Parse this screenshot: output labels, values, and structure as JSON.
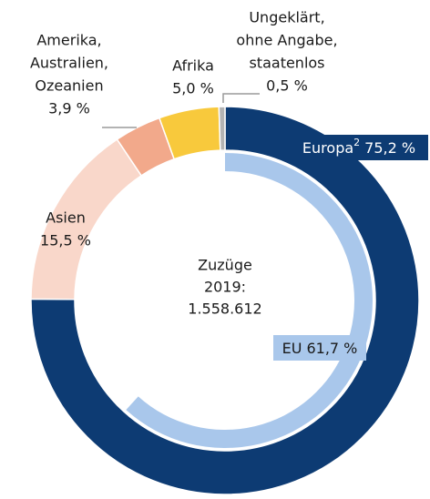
{
  "chart_data": {
    "type": "donut",
    "center_label": [
      "Zuzüge",
      "2019:",
      "1.558.612"
    ],
    "series": [
      {
        "name": [
          "Europa"
        ],
        "footnote": "2",
        "values": [
          75.2
        ],
        "value_labels": [
          "75,2 %"
        ],
        "color": "#0d3b73"
      },
      {
        "name": [
          "Asien"
        ],
        "values": [
          15.5
        ],
        "value_labels": [
          "15,5 %"
        ],
        "color": "#f9d7ca"
      },
      {
        "name": [
          "Amerika,",
          "Australien,",
          "Ozeanien"
        ],
        "values": [
          3.9
        ],
        "value_labels": [
          "3,9 %"
        ],
        "color": "#f2a98b"
      },
      {
        "name": [
          "Afrika"
        ],
        "values": [
          5.0
        ],
        "value_labels": [
          "5,0 %"
        ],
        "color": "#f8c93c"
      },
      {
        "name": [
          "Ungeklärt,",
          "ohne Angabe,",
          "staatenlos"
        ],
        "values": [
          0.5
        ],
        "value_labels": [
          "0,5 %"
        ],
        "color": "#b3b3b3"
      }
    ],
    "inner": {
      "name": "EU",
      "values": [
        61.7
      ],
      "value_labels": [
        "61,7 %"
      ],
      "color": "#a9c7eb"
    }
  }
}
